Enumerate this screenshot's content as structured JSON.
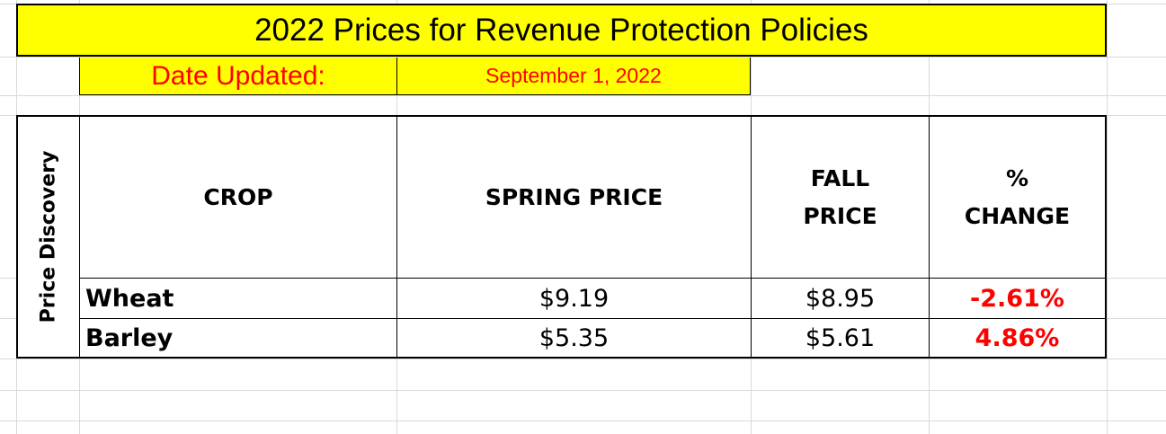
{
  "sheet": {
    "title": "2022 Prices for Revenue Protection Policies",
    "date_label": "Date Updated:",
    "date_value": "September 1, 2022"
  },
  "table": {
    "side_label": "Price Discovery",
    "headers": {
      "crop": "CROP",
      "spring_price": "SPRING PRICE",
      "fall_line1": "FALL",
      "fall_line2": "PRICE",
      "change_line1": "%",
      "change_line2": "CHANGE"
    },
    "rows": [
      {
        "crop": "Wheat",
        "spring_price": "$9.19",
        "fall_price": "$8.95",
        "change": "-2.61%"
      },
      {
        "crop": "Barley",
        "spring_price": "$5.35",
        "fall_price": "$5.61",
        "change": "4.86%"
      }
    ]
  },
  "colors": {
    "highlight": "#ffff00",
    "title_text": "#000000",
    "date_text": "#ff0000",
    "change_text": "#ff0000"
  }
}
